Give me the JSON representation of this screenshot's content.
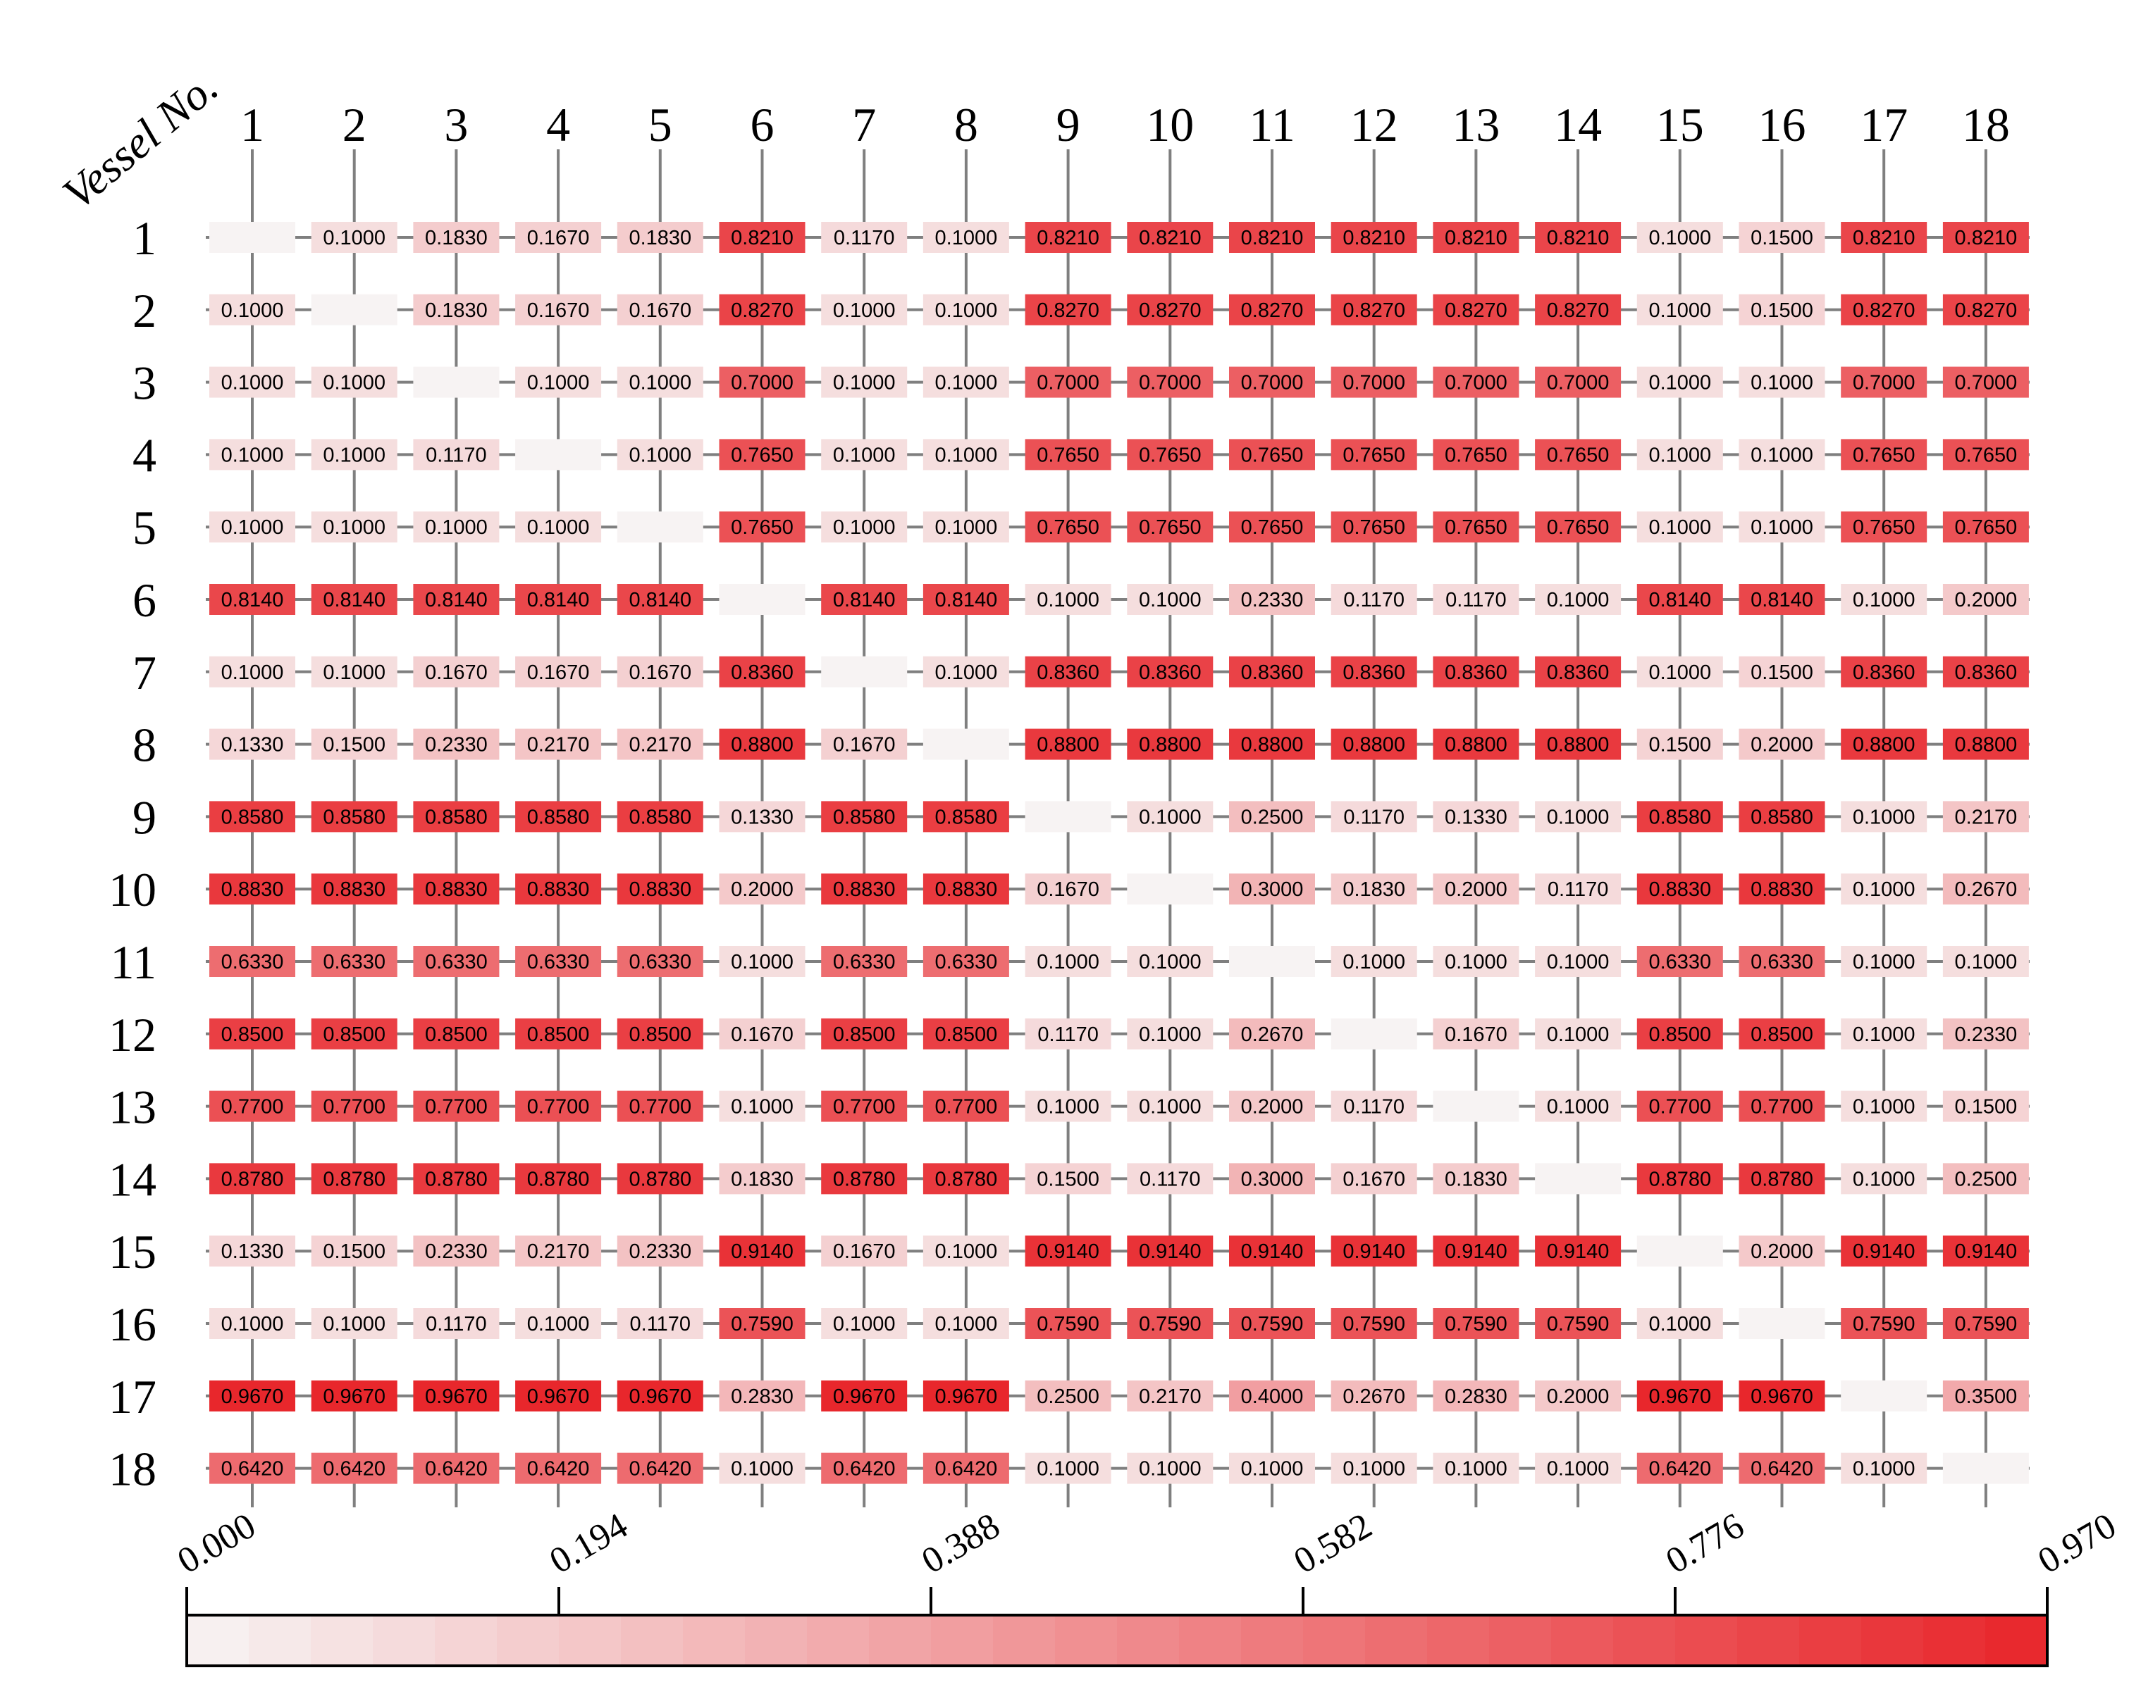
{
  "chart_data": {
    "type": "heatmap",
    "corner_label": "Vessel No.",
    "x_categories": [
      "1",
      "2",
      "3",
      "4",
      "5",
      "6",
      "7",
      "8",
      "9",
      "10",
      "11",
      "12",
      "13",
      "14",
      "15",
      "16",
      "17",
      "18"
    ],
    "y_categories": [
      "1",
      "2",
      "3",
      "4",
      "5",
      "6",
      "7",
      "8",
      "9",
      "10",
      "11",
      "12",
      "13",
      "14",
      "15",
      "16",
      "17",
      "18"
    ],
    "values": [
      [
        null,
        0.1,
        0.183,
        0.167,
        0.183,
        0.821,
        0.117,
        0.1,
        0.821,
        0.821,
        0.821,
        0.821,
        0.821,
        0.821,
        0.1,
        0.15,
        0.821,
        0.821
      ],
      [
        0.1,
        null,
        0.183,
        0.167,
        0.167,
        0.827,
        0.1,
        0.1,
        0.827,
        0.827,
        0.827,
        0.827,
        0.827,
        0.827,
        0.1,
        0.15,
        0.827,
        0.827
      ],
      [
        0.1,
        0.1,
        null,
        0.1,
        0.1,
        0.7,
        0.1,
        0.1,
        0.7,
        0.7,
        0.7,
        0.7,
        0.7,
        0.7,
        0.1,
        0.1,
        0.7,
        0.7
      ],
      [
        0.1,
        0.1,
        0.117,
        null,
        0.1,
        0.765,
        0.1,
        0.1,
        0.765,
        0.765,
        0.765,
        0.765,
        0.765,
        0.765,
        0.1,
        0.1,
        0.765,
        0.765
      ],
      [
        0.1,
        0.1,
        0.1,
        0.1,
        null,
        0.765,
        0.1,
        0.1,
        0.765,
        0.765,
        0.765,
        0.765,
        0.765,
        0.765,
        0.1,
        0.1,
        0.765,
        0.765
      ],
      [
        0.814,
        0.814,
        0.814,
        0.814,
        0.814,
        null,
        0.814,
        0.814,
        0.1,
        0.1,
        0.233,
        0.117,
        0.117,
        0.1,
        0.814,
        0.814,
        0.1,
        0.2
      ],
      [
        0.1,
        0.1,
        0.167,
        0.167,
        0.167,
        0.836,
        null,
        0.1,
        0.836,
        0.836,
        0.836,
        0.836,
        0.836,
        0.836,
        0.1,
        0.15,
        0.836,
        0.836
      ],
      [
        0.133,
        0.15,
        0.233,
        0.217,
        0.217,
        0.88,
        0.167,
        null,
        0.88,
        0.88,
        0.88,
        0.88,
        0.88,
        0.88,
        0.15,
        0.2,
        0.88,
        0.88
      ],
      [
        0.858,
        0.858,
        0.858,
        0.858,
        0.858,
        0.133,
        0.858,
        0.858,
        null,
        0.1,
        0.25,
        0.117,
        0.133,
        0.1,
        0.858,
        0.858,
        0.1,
        0.217
      ],
      [
        0.883,
        0.883,
        0.883,
        0.883,
        0.883,
        0.2,
        0.883,
        0.883,
        0.167,
        null,
        0.3,
        0.183,
        0.2,
        0.117,
        0.883,
        0.883,
        0.1,
        0.267
      ],
      [
        0.633,
        0.633,
        0.633,
        0.633,
        0.633,
        0.1,
        0.633,
        0.633,
        0.1,
        0.1,
        null,
        0.1,
        0.1,
        0.1,
        0.633,
        0.633,
        0.1,
        0.1
      ],
      [
        0.85,
        0.85,
        0.85,
        0.85,
        0.85,
        0.167,
        0.85,
        0.85,
        0.117,
        0.1,
        0.267,
        null,
        0.167,
        0.1,
        0.85,
        0.85,
        0.1,
        0.233
      ],
      [
        0.77,
        0.77,
        0.77,
        0.77,
        0.77,
        0.1,
        0.77,
        0.77,
        0.1,
        0.1,
        0.2,
        0.117,
        null,
        0.1,
        0.77,
        0.77,
        0.1,
        0.15
      ],
      [
        0.878,
        0.878,
        0.878,
        0.878,
        0.878,
        0.183,
        0.878,
        0.878,
        0.15,
        0.117,
        0.3,
        0.167,
        0.183,
        null,
        0.878,
        0.878,
        0.1,
        0.25
      ],
      [
        0.133,
        0.15,
        0.233,
        0.217,
        0.233,
        0.914,
        0.167,
        0.1,
        0.914,
        0.914,
        0.914,
        0.914,
        0.914,
        0.914,
        null,
        0.2,
        0.914,
        0.914
      ],
      [
        0.1,
        0.1,
        0.117,
        0.1,
        0.117,
        0.759,
        0.1,
        0.1,
        0.759,
        0.759,
        0.759,
        0.759,
        0.759,
        0.759,
        0.1,
        null,
        0.759,
        0.759
      ],
      [
        0.967,
        0.967,
        0.967,
        0.967,
        0.967,
        0.283,
        0.967,
        0.967,
        0.25,
        0.217,
        0.4,
        0.267,
        0.283,
        0.2,
        0.967,
        0.967,
        null,
        0.35
      ],
      [
        0.642,
        0.642,
        0.642,
        0.642,
        0.642,
        0.1,
        0.642,
        0.642,
        0.1,
        0.1,
        0.1,
        0.1,
        0.1,
        0.1,
        0.642,
        0.642,
        0.1,
        null
      ]
    ],
    "cell_format_decimals": 4,
    "colorbar": {
      "min": 0.0,
      "max": 0.97,
      "ticks": [
        "0.000",
        "0.194",
        "0.388",
        "0.582",
        "0.776",
        "0.970"
      ],
      "color_low": "#f7f3f3",
      "color_high": "#e8262b",
      "orientation": "horizontal",
      "placement": "bottom"
    },
    "grid": true,
    "grid_color": "#7f7f7f"
  }
}
